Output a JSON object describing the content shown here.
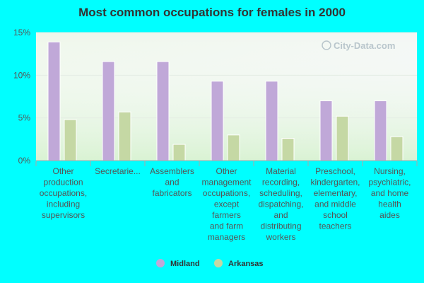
{
  "chart_data": {
    "type": "bar",
    "title": "Most common occupations for females in 2000",
    "xlabel": "",
    "ylabel": "",
    "ylim": [
      0,
      15
    ],
    "yticks": [
      0,
      5,
      10,
      15
    ],
    "ytick_labels": [
      "0%",
      "5%",
      "10%",
      "15%"
    ],
    "grid": true,
    "legend_position": "bottom",
    "categories": [
      "Other production occupations, including supervisors",
      "Secretaries",
      "Assemblers and fabricators",
      "Other management occupations, except farmers and farm managers",
      "Material recording, scheduling, dispatching, and distributing workers",
      "Preschool, kindergarten, elementary, and middle school teachers",
      "Nursing, psychiatric, and home health aides"
    ],
    "category_display_lines": [
      [
        "Other",
        "production",
        "occupations,",
        "including",
        "supervisors"
      ],
      [
        "Secretarie..."
      ],
      [
        "Assemblers",
        "and",
        "fabricators"
      ],
      [
        "Other",
        "management",
        "occupations,",
        "except",
        "farmers",
        "and farm",
        "managers"
      ],
      [
        "Material",
        "recording,",
        "scheduling,",
        "dispatching,",
        "and",
        "distributing",
        "workers"
      ],
      [
        "Preschool,",
        "kindergarten,",
        "elementary,",
        "and middle",
        "school",
        "teachers"
      ],
      [
        "Nursing,",
        "psychiatric,",
        "and home",
        "health",
        "aides"
      ]
    ],
    "series": [
      {
        "name": "Midland",
        "color": "#c0a8d8",
        "values": [
          13.9,
          11.6,
          11.6,
          9.3,
          9.3,
          7.0,
          7.0
        ]
      },
      {
        "name": "Arkansas",
        "color": "#c5d8a4",
        "values": [
          4.8,
          5.7,
          1.9,
          3.0,
          2.6,
          5.2,
          2.8
        ]
      }
    ]
  },
  "watermark": "City-Data.com"
}
